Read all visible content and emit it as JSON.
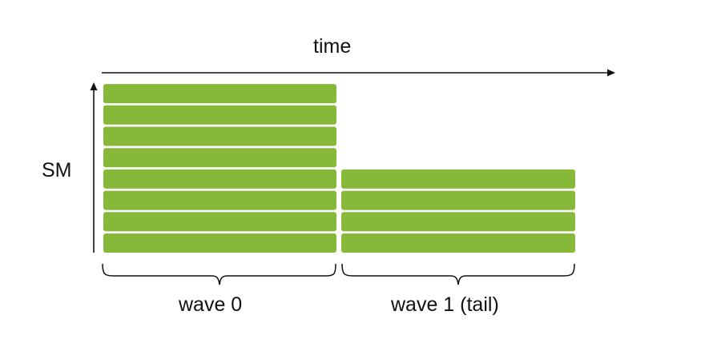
{
  "axes": {
    "time_label": "time",
    "sm_label": "SM"
  },
  "waves": [
    {
      "label": "wave 0",
      "blocks": 8
    },
    {
      "label": "wave 1 (tail)",
      "blocks": 4
    }
  ],
  "colors": {
    "block": "#86b83a",
    "axis": "#111111"
  }
}
